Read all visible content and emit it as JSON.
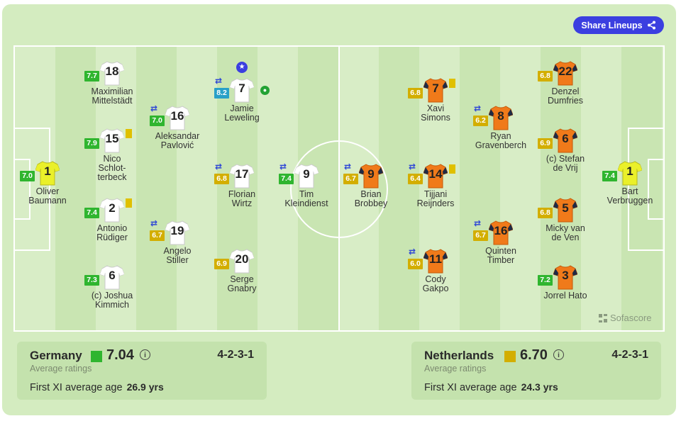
{
  "share_label": "Share Lineups",
  "brand": "Sofascore",
  "colors": {
    "green": "#2fb52f",
    "yellow": "#d3ae00",
    "teal": "#28a0c8",
    "white_kit": "#ffffff",
    "orange_kit": "#f07a1a",
    "gk_kit": "#eaf02a"
  },
  "home": {
    "name": "Germany",
    "avg": "7.04",
    "formation": "4-2-3-1",
    "avg_label": "Average ratings",
    "age_label": "First XI average age",
    "age": "26.9 yrs",
    "players": [
      {
        "number": "1",
        "name": "Oliver\nBaumann",
        "rating": "7.0",
        "rc": "green",
        "kit": "gk"
      },
      {
        "number": "18",
        "name": "Maximilian\nMittelstädt",
        "rating": "7.7",
        "rc": "green",
        "kit": "white"
      },
      {
        "number": "15",
        "name": "Nico\nSchlot-\nterbeck",
        "rating": "7.9",
        "rc": "green",
        "kit": "white",
        "card": true
      },
      {
        "number": "2",
        "name": "Antonio\nRüdiger",
        "rating": "7.4",
        "rc": "green",
        "kit": "white",
        "card": true
      },
      {
        "number": "6",
        "name": "(c) Joshua\nKimmich",
        "rating": "7.3",
        "rc": "green",
        "kit": "white"
      },
      {
        "number": "16",
        "name": "Aleksandar\nPavlović",
        "rating": "7.0",
        "rc": "green",
        "kit": "white",
        "sub": true
      },
      {
        "number": "19",
        "name": "Angelo\nStiller",
        "rating": "6.7",
        "rc": "yellow",
        "kit": "white",
        "sub": true
      },
      {
        "number": "7",
        "name": "Jamie\nLeweling",
        "rating": "8.2",
        "rc": "teal",
        "kit": "white",
        "sub": true,
        "star": true,
        "goal": true
      },
      {
        "number": "17",
        "name": "Florian\nWirtz",
        "rating": "6.8",
        "rc": "yellow",
        "kit": "white",
        "sub": true
      },
      {
        "number": "20",
        "name": "Serge\nGnabry",
        "rating": "6.9",
        "rc": "yellow",
        "kit": "white"
      },
      {
        "number": "9",
        "name": "Tim\nKleindienst",
        "rating": "7.4",
        "rc": "green",
        "kit": "white",
        "sub": true
      }
    ]
  },
  "away": {
    "name": "Netherlands",
    "avg": "6.70",
    "formation": "4-2-3-1",
    "avg_label": "Average ratings",
    "age_label": "First XI average age",
    "age": "24.3 yrs",
    "players": [
      {
        "number": "9",
        "name": "Brian\nBrobbey",
        "rating": "6.7",
        "rc": "yellow",
        "kit": "orange",
        "sub": true
      },
      {
        "number": "7",
        "name": "Xavi\nSimons",
        "rating": "6.8",
        "rc": "yellow",
        "kit": "orange",
        "card": true
      },
      {
        "number": "14",
        "name": "Tijjani\nReijnders",
        "rating": "6.4",
        "rc": "yellow",
        "kit": "orange",
        "sub": true,
        "card": true
      },
      {
        "number": "11",
        "name": "Cody\nGakpo",
        "rating": "6.0",
        "rc": "yellow",
        "kit": "orange",
        "sub": true
      },
      {
        "number": "8",
        "name": "Ryan\nGravenberch",
        "rating": "6.2",
        "rc": "yellow",
        "kit": "orange",
        "sub": true
      },
      {
        "number": "16",
        "name": "Quinten\nTimber",
        "rating": "6.7",
        "rc": "yellow",
        "kit": "orange",
        "sub": true
      },
      {
        "number": "22",
        "name": "Denzel\nDumfries",
        "rating": "6.8",
        "rc": "yellow",
        "kit": "orange"
      },
      {
        "number": "6",
        "name": "(c) Stefan\nde Vrij",
        "rating": "6.9",
        "rc": "yellow",
        "kit": "orange"
      },
      {
        "number": "5",
        "name": "Micky van\nde Ven",
        "rating": "6.8",
        "rc": "yellow",
        "kit": "orange"
      },
      {
        "number": "3",
        "name": "Jorrel Hato",
        "rating": "7.2",
        "rc": "green",
        "kit": "orange"
      },
      {
        "number": "1",
        "name": "Bart\nVerbruggen",
        "rating": "7.4",
        "rc": "green",
        "kit": "gk"
      }
    ]
  }
}
